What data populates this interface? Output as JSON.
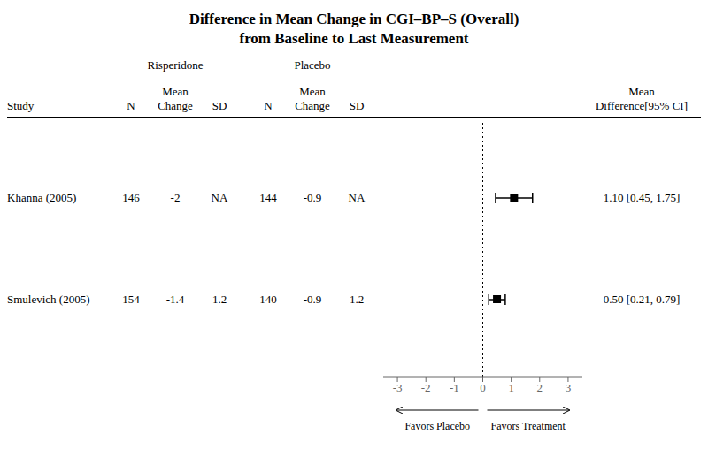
{
  "chart_data": {
    "type": "forest",
    "title": "Difference in Mean Change in CGI–BP–S (Overall)",
    "subtitle": "from Baseline to Last Measurement",
    "categories": [
      "Khanna (2005)",
      "Smulevich (2005)"
    ],
    "values": [
      1.1,
      0.5
    ],
    "ci_lower": [
      0.45,
      0.21
    ],
    "ci_upper": [
      1.75,
      0.79
    ],
    "value_labels": [
      "1.10 [0.45, 1.75]",
      "0.50 [0.21, 0.79]"
    ],
    "xlim": [
      -3.5,
      3.5
    ],
    "xticks": [
      -3,
      -2,
      -1,
      0,
      1,
      2,
      3
    ],
    "reference_line": 0,
    "tick_labels": "x",
    "marker": "square",
    "table": {
      "study_header": "Study",
      "value_header": "Mean\nDifference[95% CI]",
      "groups": [
        {
          "name": "Risperidone",
          "columns": [
            {
              "header": "N",
              "values": [
                146,
                154
              ]
            },
            {
              "header": "Mean\nChange",
              "values": [
                -2,
                -1.4
              ]
            },
            {
              "header": "SD",
              "values": [
                "NA",
                1.2
              ]
            }
          ]
        },
        {
          "name": "Placebo",
          "columns": [
            {
              "header": "N",
              "values": [
                144,
                140
              ]
            },
            {
              "header": "Mean\nChange",
              "values": [
                -0.9,
                -0.9
              ]
            },
            {
              "header": "SD",
              "values": [
                "NA",
                1.2
              ]
            }
          ]
        }
      ]
    },
    "annotations": [
      "Favors Placebo",
      "Favors Treatment"
    ]
  }
}
